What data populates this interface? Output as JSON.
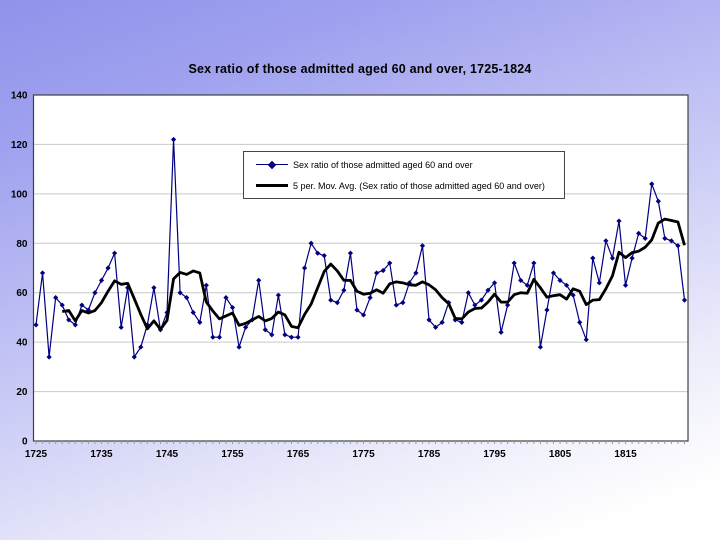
{
  "slide": {
    "title": "Sex ratio of those admitted aged 60 and over, 1725-1824"
  },
  "chart_data": {
    "type": "line",
    "title": "Sex ratio of those admitted aged 60 and over, 1725-1824",
    "xlabel": "",
    "ylabel": "",
    "x_start": 1725,
    "x_end": 1824,
    "x_tick_labels": [
      1725,
      1735,
      1745,
      1755,
      1765,
      1775,
      1785,
      1795,
      1805,
      1815
    ],
    "y_ticks": [
      0,
      20,
      40,
      60,
      80,
      100,
      120,
      140
    ],
    "ylim": [
      0,
      140
    ],
    "grid": "horizontal",
    "legend_position": "top-center-box",
    "series": [
      {
        "name": "Sex ratio of those admitted aged 60 and over",
        "color": "#000080",
        "marker": "diamond",
        "line_width": 1.2,
        "x_first": 1725,
        "values": [
          47,
          68,
          34,
          58,
          55,
          49,
          47,
          55,
          53,
          60,
          65,
          70,
          76,
          46,
          62,
          34,
          38,
          47,
          62,
          45,
          52,
          122,
          60,
          58,
          52,
          48,
          63,
          42,
          42,
          58,
          54,
          38,
          46,
          49,
          65,
          45,
          43,
          59,
          43,
          42,
          42,
          70,
          80,
          76,
          75,
          57,
          56,
          61,
          76,
          53,
          51,
          58,
          68,
          69,
          72,
          55,
          56,
          64,
          68,
          79,
          49,
          46,
          48,
          56,
          49,
          48,
          60,
          55,
          57,
          61,
          64,
          44,
          55,
          72,
          65,
          63,
          72,
          38,
          53,
          68,
          65,
          63,
          59,
          48,
          41,
          74,
          64,
          81,
          74,
          89,
          63,
          74,
          84,
          82,
          104,
          97,
          82,
          81,
          79,
          57
        ]
      },
      {
        "name": "5 per. Mov. Avg. (Sex ratio of those admitted aged 60 and over)",
        "color": "#000000",
        "marker": "none",
        "line_width": 2.8,
        "derived": "trailing_moving_average",
        "window": 5
      }
    ]
  },
  "colors": {
    "background_top": "#8f92ea",
    "background_bottom": "#ffffff",
    "plot_background": "#ffffff",
    "gridline": "#c9c9c9",
    "axis": "#404040",
    "series_line": "#000080",
    "moving_average_line": "#000000"
  }
}
